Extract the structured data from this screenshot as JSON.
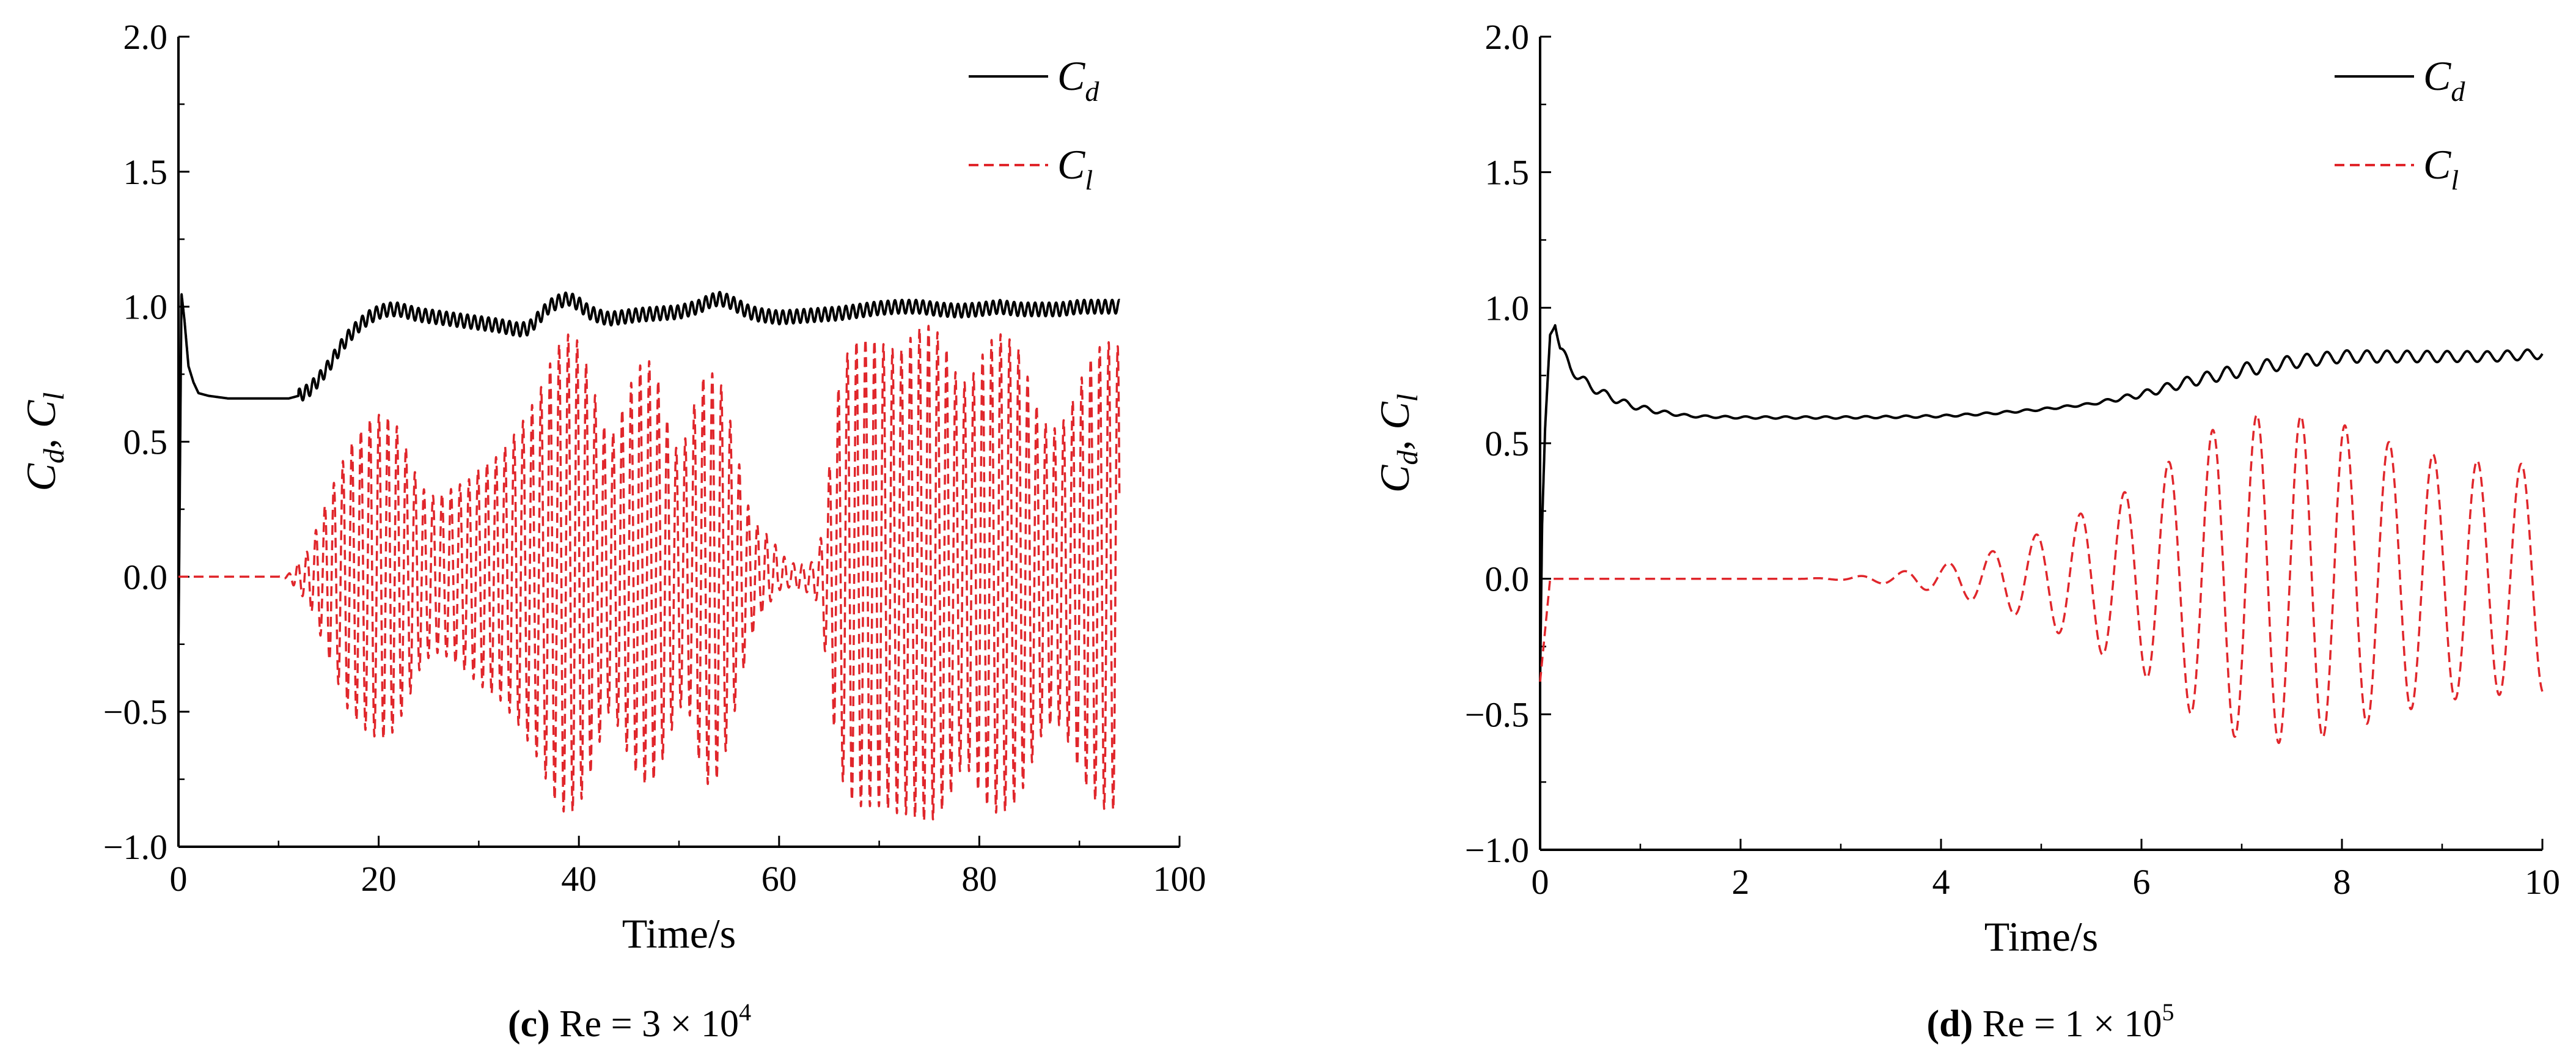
{
  "chart_data": [
    {
      "type": "line",
      "panel_letter": "c",
      "caption": {
        "letter": "(c)",
        "text": " Re = 3 × 10",
        "exponent": "4"
      },
      "xlabel": "Time/s",
      "ylabel": {
        "c_main": "C",
        "d_sub": "d",
        "sep": ", ",
        "l_main": "C",
        "l_sub": "l"
      },
      "xlim": [
        0,
        100
      ],
      "ylim": [
        -1.0,
        2.0
      ],
      "xticks": [
        0,
        20,
        40,
        60,
        80,
        100
      ],
      "xtick_labels": [
        "0",
        "20",
        "40",
        "60",
        "80",
        "100"
      ],
      "yticks": [
        -1.0,
        -0.5,
        0.0,
        0.5,
        1.0,
        1.5,
        2.0
      ],
      "ytick_labels": [
        "−1.0",
        "−0.5",
        "0.0",
        "0.5",
        "1.0",
        "1.5",
        "2.0"
      ],
      "grid": false,
      "legend_position": "top-right",
      "series": [
        {
          "name": "Cd",
          "label_main": "C",
          "label_sub": "d",
          "color": "#000000",
          "dash": "solid",
          "x": [
            0,
            0.3,
            0.6,
            1,
            1.5,
            2,
            3,
            4,
            5,
            7,
            9,
            11,
            12,
            13,
            14,
            15,
            16,
            17,
            18,
            19,
            20,
            21,
            22,
            23,
            24,
            25,
            26,
            28,
            30,
            32,
            34,
            35,
            36,
            37,
            38,
            39,
            40,
            41,
            42,
            43,
            44,
            46,
            48,
            50,
            52,
            53,
            54,
            55,
            56,
            57,
            58,
            60,
            62,
            64,
            66,
            68,
            70,
            72,
            74,
            76,
            78,
            80,
            82,
            84,
            86,
            88,
            90,
            92,
            94
          ],
          "values": [
            -0.25,
            1.05,
            0.95,
            0.78,
            0.72,
            0.68,
            0.67,
            0.665,
            0.66,
            0.66,
            0.66,
            0.66,
            0.67,
            0.69,
            0.73,
            0.78,
            0.84,
            0.89,
            0.93,
            0.96,
            0.98,
            0.99,
            0.99,
            0.98,
            0.97,
            0.965,
            0.96,
            0.95,
            0.94,
            0.93,
            0.915,
            0.92,
            0.96,
            1.0,
            1.02,
            1.03,
            1.01,
            0.98,
            0.965,
            0.955,
            0.96,
            0.97,
            0.975,
            0.98,
            1.0,
            1.02,
            1.03,
            1.02,
            1.0,
            0.98,
            0.97,
            0.96,
            0.965,
            0.97,
            0.975,
            0.985,
            0.995,
            1.0,
            1.0,
            0.99,
            0.985,
            0.99,
            1.0,
            0.99,
            0.99,
            0.99,
            1.0,
            1.0,
            1.0
          ],
          "oscillation_amplitude": 0.025,
          "oscillation_period": 0.7
        },
        {
          "name": "Cl",
          "label_main": "C",
          "label_sub": "l",
          "color": "#e0262b",
          "dash": "dashed",
          "mean": 0.0,
          "oscillation_period": 0.9,
          "envelope_x": [
            0,
            10,
            11,
            13,
            15,
            17,
            19,
            20,
            21,
            22,
            23,
            24,
            25,
            26,
            27,
            28,
            29,
            30,
            32,
            34,
            36,
            37,
            38,
            39,
            40,
            41,
            42,
            43,
            44,
            45,
            46,
            47,
            48,
            49,
            50,
            51,
            52,
            53,
            54,
            55,
            56,
            57,
            58,
            59,
            60,
            61,
            62,
            63,
            64,
            65,
            66,
            67,
            68,
            69,
            70,
            71,
            72,
            73,
            74,
            75,
            76,
            77,
            78,
            79,
            80,
            81,
            82,
            83,
            84,
            85,
            86,
            87,
            88,
            89,
            90,
            91,
            92,
            93,
            94
          ],
          "envelope_max": [
            0.0,
            0.0,
            0.01,
            0.1,
            0.3,
            0.48,
            0.58,
            0.6,
            0.59,
            0.55,
            0.45,
            0.35,
            0.3,
            0.3,
            0.32,
            0.34,
            0.36,
            0.4,
            0.45,
            0.55,
            0.68,
            0.78,
            0.86,
            0.9,
            0.87,
            0.76,
            0.62,
            0.5,
            0.58,
            0.7,
            0.78,
            0.8,
            0.72,
            0.55,
            0.45,
            0.55,
            0.72,
            0.76,
            0.74,
            0.6,
            0.42,
            0.25,
            0.18,
            0.15,
            0.1,
            0.05,
            0.05,
            0.04,
            0.1,
            0.4,
            0.72,
            0.85,
            0.88,
            0.88,
            0.87,
            0.85,
            0.83,
            0.88,
            0.92,
            0.93,
            0.9,
            0.82,
            0.72,
            0.72,
            0.8,
            0.87,
            0.9,
            0.88,
            0.84,
            0.72,
            0.6,
            0.55,
            0.55,
            0.62,
            0.72,
            0.8,
            0.85,
            0.87,
            0.85
          ],
          "envelope_min": [
            0.0,
            0.0,
            -0.01,
            -0.1,
            -0.3,
            -0.5,
            -0.58,
            -0.6,
            -0.6,
            -0.54,
            -0.45,
            -0.35,
            -0.3,
            -0.28,
            -0.3,
            -0.33,
            -0.36,
            -0.4,
            -0.45,
            -0.55,
            -0.68,
            -0.78,
            -0.86,
            -0.88,
            -0.85,
            -0.75,
            -0.62,
            -0.5,
            -0.56,
            -0.67,
            -0.75,
            -0.78,
            -0.72,
            -0.6,
            -0.48,
            -0.5,
            -0.68,
            -0.78,
            -0.74,
            -0.6,
            -0.42,
            -0.25,
            -0.15,
            -0.1,
            -0.05,
            -0.04,
            -0.05,
            -0.06,
            -0.1,
            -0.4,
            -0.72,
            -0.82,
            -0.85,
            -0.85,
            -0.85,
            -0.86,
            -0.88,
            -0.88,
            -0.9,
            -0.91,
            -0.88,
            -0.82,
            -0.72,
            -0.72,
            -0.8,
            -0.86,
            -0.88,
            -0.86,
            -0.82,
            -0.72,
            -0.6,
            -0.55,
            -0.55,
            -0.62,
            -0.72,
            -0.8,
            -0.85,
            -0.87,
            -0.85
          ]
        }
      ]
    },
    {
      "type": "line",
      "panel_letter": "d",
      "caption": {
        "letter": "(d)",
        "text": " Re = 1 × 10",
        "exponent": "5"
      },
      "xlabel": "Time/s",
      "ylabel": {
        "c_main": "C",
        "d_sub": "d",
        "sep": ", ",
        "l_main": "C",
        "l_sub": "l"
      },
      "xlim": [
        0,
        10
      ],
      "ylim": [
        -1.0,
        2.0
      ],
      "xticks": [
        0,
        2,
        4,
        6,
        8,
        10
      ],
      "xtick_labels": [
        "0",
        "2",
        "4",
        "6",
        "8",
        "10"
      ],
      "yticks": [
        -1.0,
        -0.5,
        0.0,
        0.5,
        1.0,
        1.5,
        2.0
      ],
      "ytick_labels": [
        "−1.0",
        "−0.5",
        "0.0",
        "0.5",
        "1.0",
        "1.5",
        "2.0"
      ],
      "grid": false,
      "legend_position": "top-right",
      "series": [
        {
          "name": "Cd",
          "label_main": "C",
          "label_sub": "d",
          "color": "#000000",
          "dash": "solid",
          "x": [
            0,
            0.02,
            0.05,
            0.1,
            0.15,
            0.2,
            0.3,
            0.4,
            0.5,
            0.7,
            0.9,
            1.2,
            1.5,
            2,
            2.5,
            3,
            3.5,
            4,
            4.5,
            5,
            5.5,
            6,
            6.5,
            7,
            7.5,
            8,
            8.5,
            9,
            9.5,
            10
          ],
          "values": [
            -0.38,
            0.2,
            0.55,
            0.9,
            0.95,
            0.85,
            0.78,
            0.74,
            0.71,
            0.67,
            0.64,
            0.615,
            0.6,
            0.595,
            0.595,
            0.595,
            0.597,
            0.6,
            0.61,
            0.625,
            0.645,
            0.68,
            0.73,
            0.77,
            0.8,
            0.82,
            0.82,
            0.82,
            0.82,
            0.83
          ],
          "osc_x": [
            0,
            0.2,
            1.0,
            1.5,
            5.5,
            6,
            6.5,
            7,
            10
          ],
          "osc_amp": [
            0,
            0.02,
            0.01,
            0.004,
            0.004,
            0.012,
            0.02,
            0.025,
            0.018
          ],
          "oscillation_period": 0.2
        },
        {
          "name": "Cl",
          "label_main": "C",
          "label_sub": "l",
          "color": "#e0262b",
          "dash": "dashed",
          "mean": 0.0,
          "start_value": -0.38,
          "oscillation_period": 0.44,
          "envelope_x": [
            0,
            0.2,
            2.5,
            3.0,
            3.5,
            4.0,
            4.5,
            5.0,
            5.5,
            6.0,
            6.5,
            6.8,
            7.2,
            7.6,
            8.0,
            8.5,
            9.0,
            9.5,
            10
          ],
          "envelope_amp": [
            0,
            0,
            0,
            0.004,
            0.02,
            0.05,
            0.1,
            0.17,
            0.26,
            0.35,
            0.5,
            0.57,
            0.61,
            0.6,
            0.57,
            0.5,
            0.45,
            0.43,
            0.42
          ]
        }
      ]
    }
  ]
}
